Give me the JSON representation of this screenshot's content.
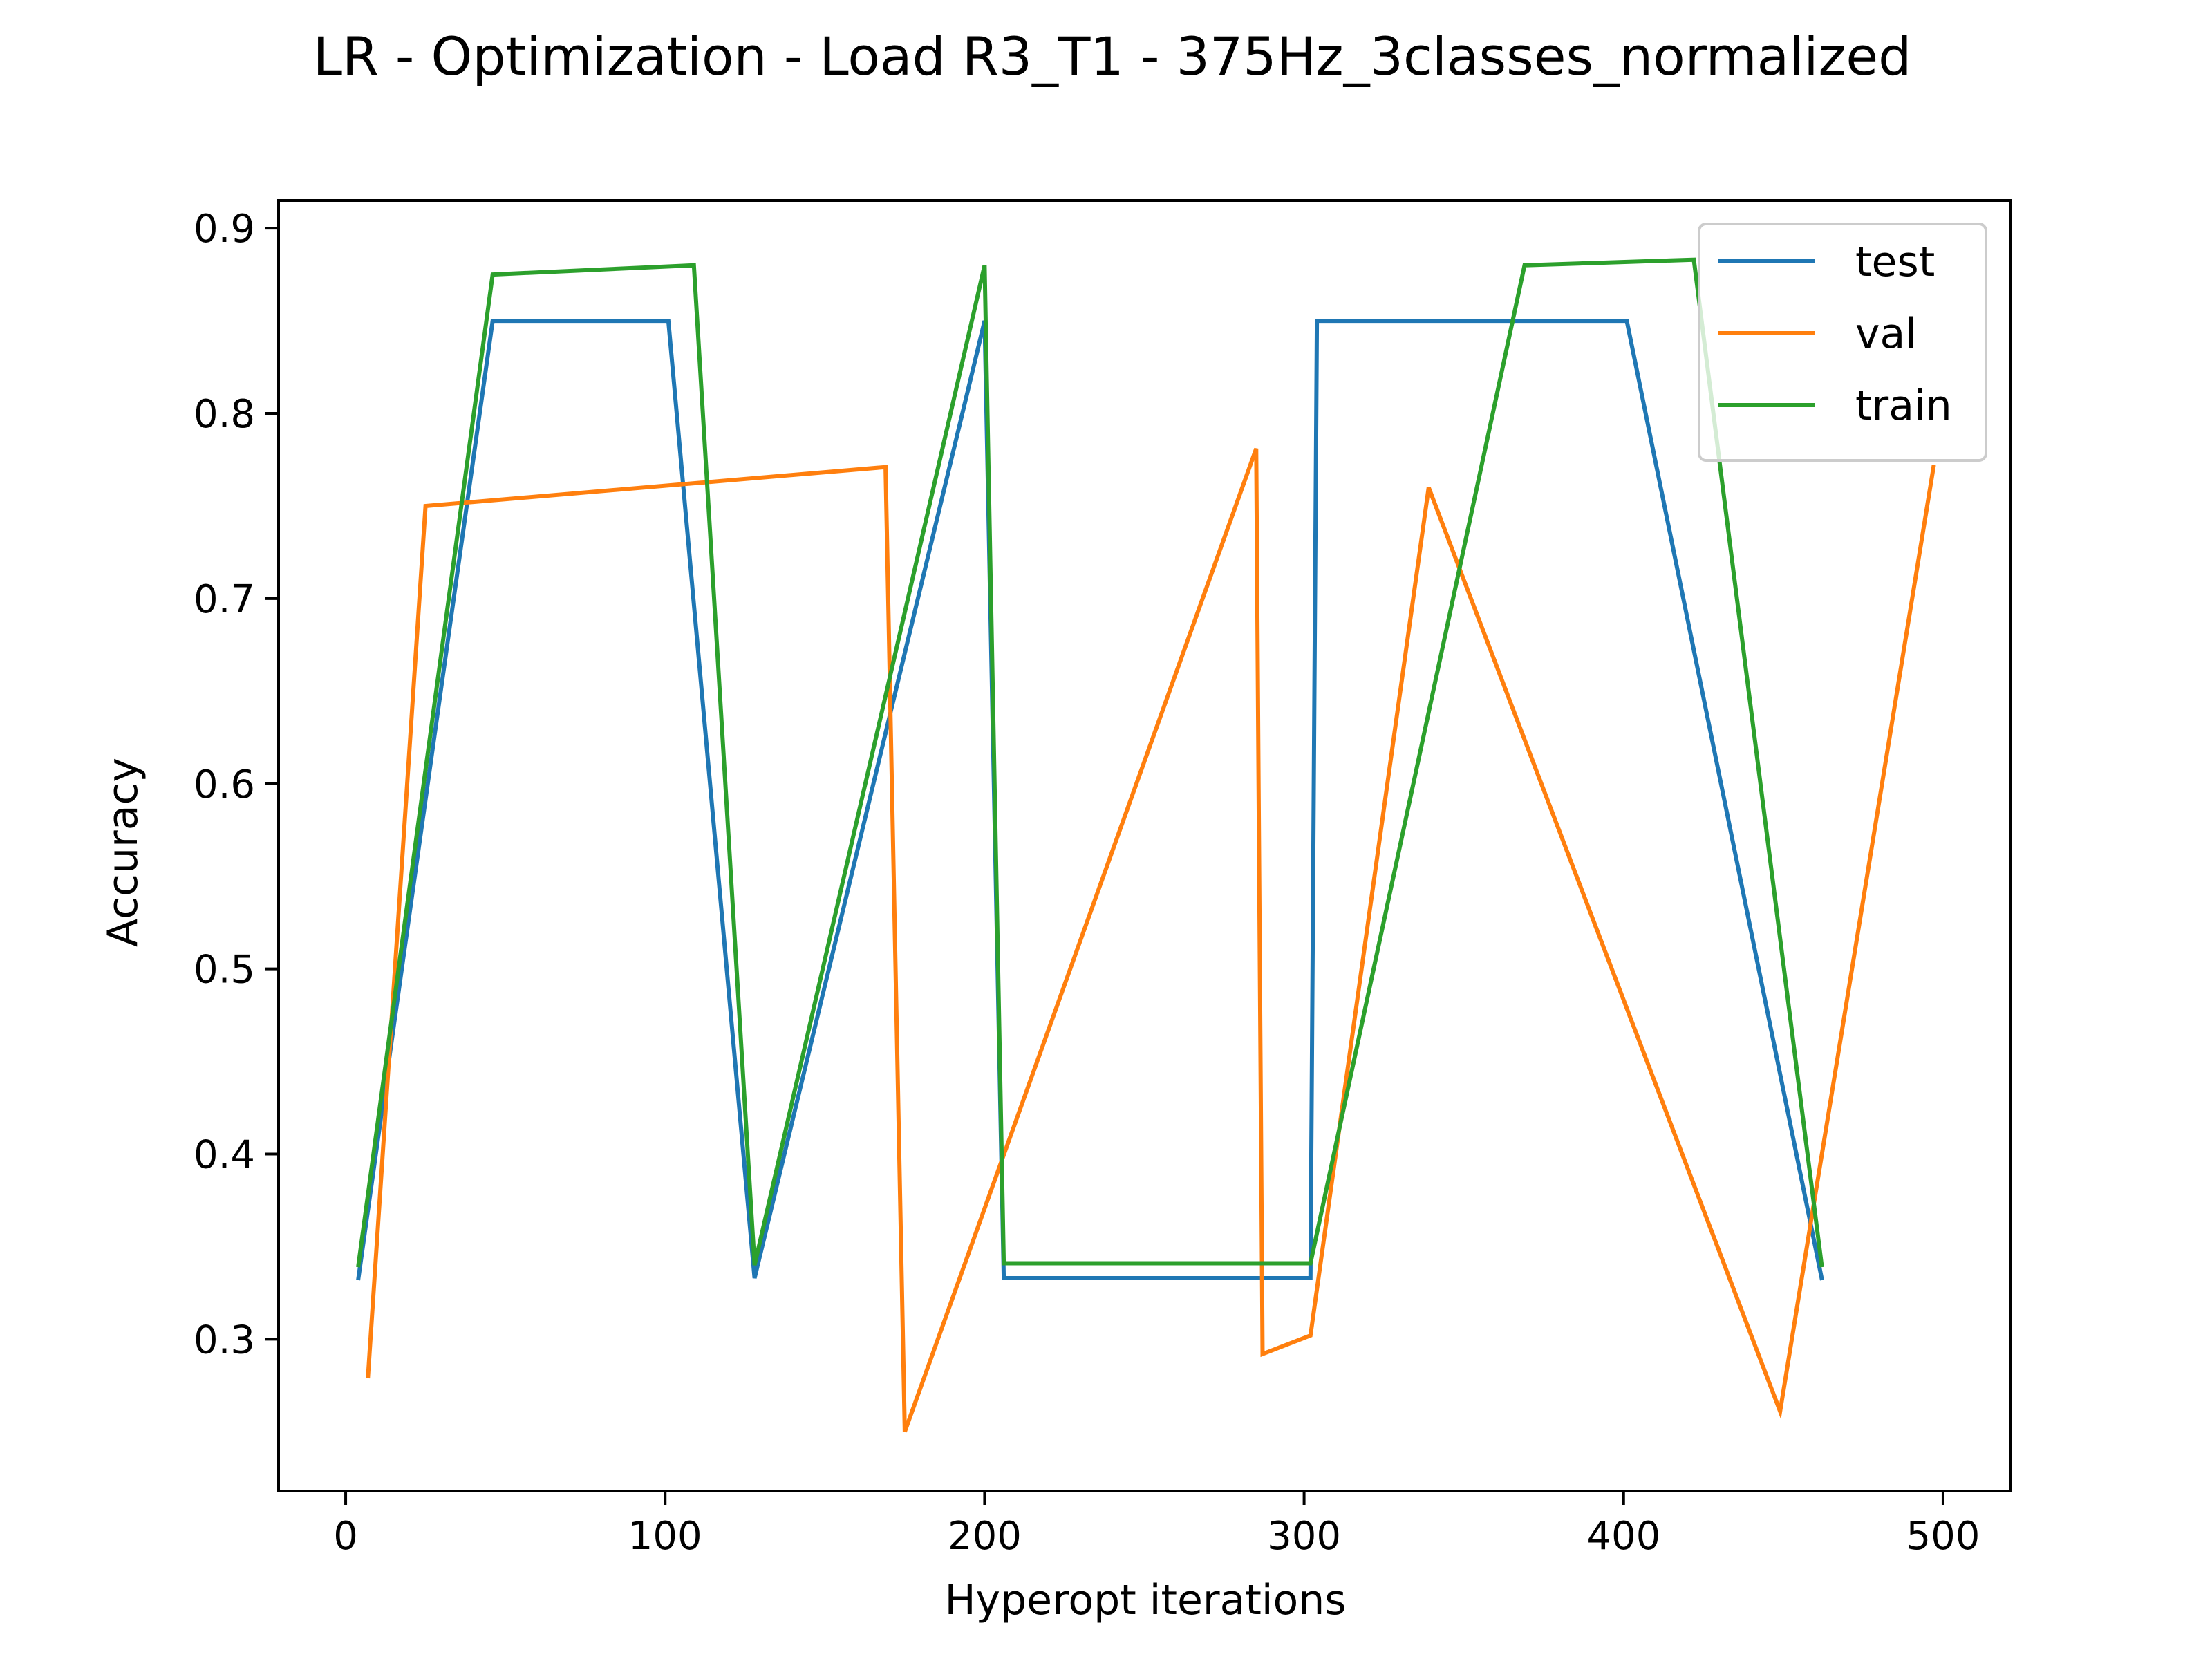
{
  "chart_data": {
    "type": "line",
    "title": "LR - Optimization - Load R3_T1 - 375Hz_3classes_normalized",
    "xlabel": "Hyperopt iterations",
    "ylabel": "Accuracy",
    "xlim": [
      -21,
      521
    ],
    "ylim": [
      0.218,
      0.915
    ],
    "xticks": [
      0,
      100,
      200,
      300,
      400,
      500
    ],
    "yticks": [
      0.3,
      0.4,
      0.5,
      0.6,
      0.7,
      0.8,
      0.9
    ],
    "xtick_labels": [
      "0",
      "100",
      "200",
      "300",
      "400",
      "500"
    ],
    "ytick_labels": [
      "0.3",
      "0.4",
      "0.5",
      "0.6",
      "0.7",
      "0.8",
      "0.9"
    ],
    "grid": false,
    "legend_position": "top-right",
    "series": [
      {
        "name": "test",
        "color": "#1f77b4",
        "x": [
          4,
          46,
          101,
          128,
          200,
          206,
          302,
          304,
          401,
          462
        ],
        "y": [
          0.333,
          0.85,
          0.85,
          0.333,
          0.85,
          0.333,
          0.333,
          0.85,
          0.85,
          0.333
        ]
      },
      {
        "name": "val",
        "color": "#ff7f0e",
        "x": [
          7,
          25,
          169,
          175,
          285,
          287,
          302,
          339,
          449,
          497
        ],
        "y": [
          0.28,
          0.75,
          0.771,
          0.25,
          0.781,
          0.292,
          0.302,
          0.76,
          0.261,
          0.771
        ]
      },
      {
        "name": "train",
        "color": "#2ca02c",
        "x": [
          4,
          46,
          109,
          128,
          200,
          206,
          302,
          369,
          422,
          462
        ],
        "y": [
          0.34,
          0.875,
          0.88,
          0.34,
          0.88,
          0.341,
          0.341,
          0.88,
          0.883,
          0.34
        ]
      }
    ]
  }
}
